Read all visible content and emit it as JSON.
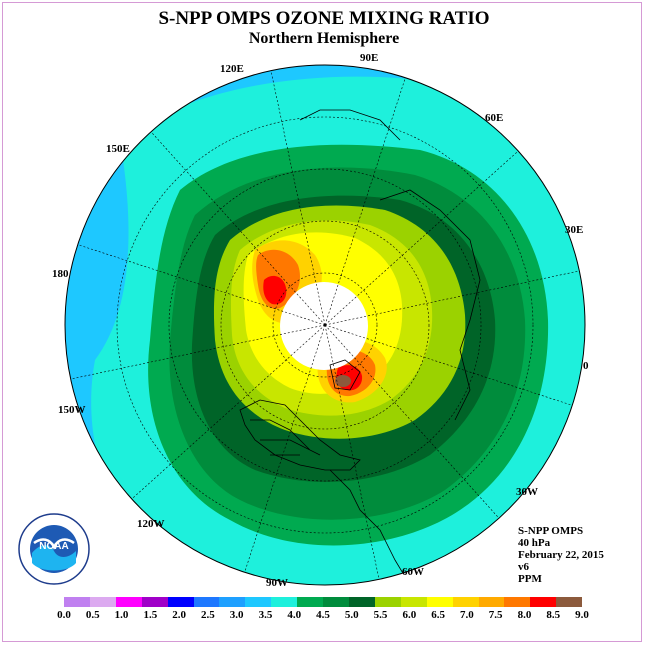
{
  "title": "S-NPP OMPS OZONE MIXING RATIO",
  "subtitle": "Northern Hemisphere",
  "longitude_labels": {
    "e90": "90E",
    "e60": "60E",
    "e30": "30E",
    "zero": "0",
    "w30": "30W",
    "w60": "60W",
    "w90": "90W",
    "w120": "120W",
    "w150": "150W",
    "l180": "180",
    "e150": "150E",
    "e120": "120E"
  },
  "info": {
    "line1": "S-NPP OMPS",
    "line2": "40 hPa",
    "line3": "February 22, 2015",
    "line4": "v6",
    "line5": "PPM"
  },
  "logo_text": "NOAA",
  "colorbar": {
    "colors": [
      "#c080f0",
      "#dcaaf0",
      "#ff00ff",
      "#a000c8",
      "#0000ff",
      "#1e78ff",
      "#1ea0ff",
      "#1ec8ff",
      "#1ef0dc",
      "#00aa50",
      "#008c3c",
      "#006428",
      "#9bd200",
      "#c8e600",
      "#ffff00",
      "#ffd200",
      "#ffaa00",
      "#ff7800",
      "#ff0000",
      "#8c5a3c"
    ],
    "ticks": [
      "0.0",
      "0.5",
      "1.0",
      "1.5",
      "2.0",
      "2.5",
      "3.0",
      "3.5",
      "4.0",
      "4.5",
      "5.0",
      "5.5",
      "6.0",
      "6.5",
      "7.0",
      "7.5",
      "8.0",
      "8.5",
      "9.0"
    ]
  }
}
